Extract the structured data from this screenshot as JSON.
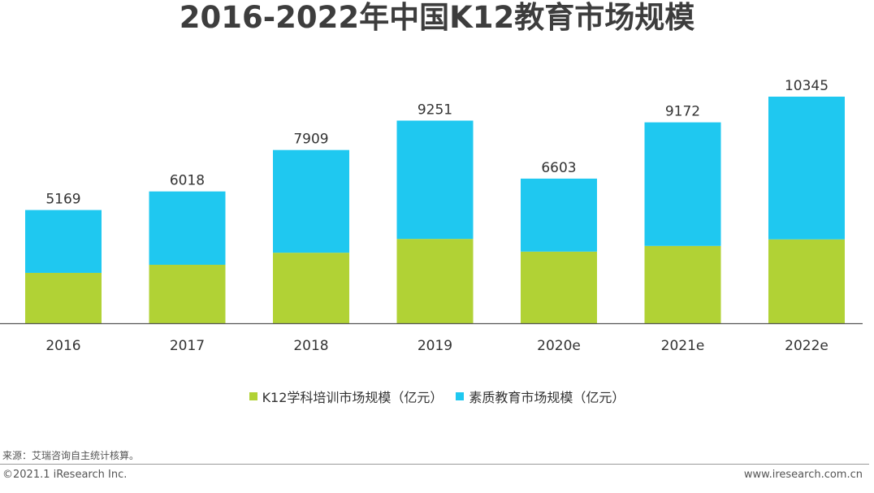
{
  "chart_data": {
    "type": "bar",
    "stacked": true,
    "title": "2016-2022年中国K12教育市场规模",
    "categories": [
      "2016",
      "2017",
      "2018",
      "2019",
      "2020e",
      "2021e",
      "2022e"
    ],
    "series": [
      {
        "name": "K12学科培训市场规模（亿元）",
        "color": "#b1d235",
        "values": [
          2300,
          2670,
          3220,
          3850,
          3270,
          3530,
          3830
        ]
      },
      {
        "name": "素质教育市场规模（亿元）",
        "color": "#1fc8f0",
        "values": [
          2869,
          3348,
          4689,
          5401,
          3333,
          5642,
          6515
        ]
      }
    ],
    "totals": [
      5169,
      6018,
      7909,
      9251,
      6603,
      9172,
      10345
    ],
    "xlabel": "",
    "ylabel": "",
    "ylim": [
      0,
      11000
    ],
    "grid": false,
    "legend_position": "bottom"
  },
  "footer": {
    "source": "来源：艾瑞咨询自主统计核算。",
    "copyright": "©2021.1 iResearch Inc.",
    "website": "www.iresearch.com.cn"
  }
}
